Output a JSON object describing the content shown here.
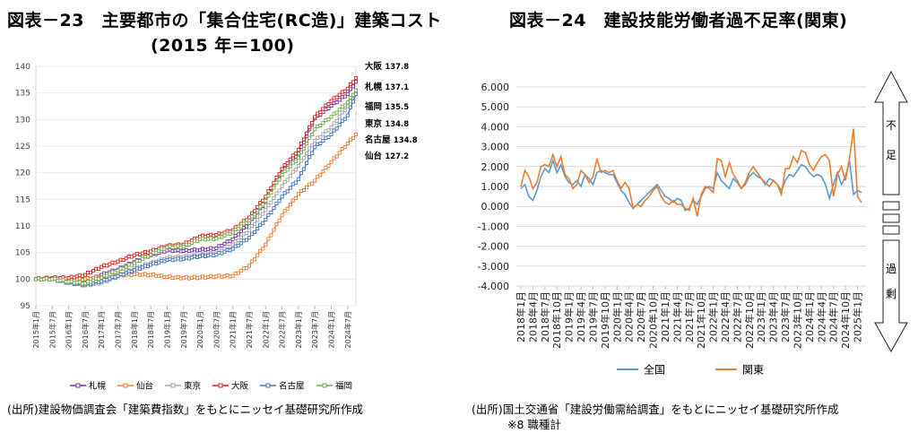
{
  "left": {
    "title_line1": "図表－23　主要都市の「集合住宅(RC造)」建築コスト",
    "title_line2": "(2015 年＝100)",
    "source": "(出所)建設物価調査会「建築費指数」をもとにニッセイ基礎研究所作成"
  },
  "right": {
    "title": "図表－24　建設技能労働者過不足率(関東)",
    "source_line1": "(出所)国土交通省「建設労働需給調査」をもとにニッセイ基礎研究所作成",
    "source_line2": "※8 職種計",
    "arrow_top": [
      "不",
      "足"
    ],
    "arrow_bottom": [
      "過",
      "剰"
    ]
  },
  "chart_data": [
    {
      "type": "line",
      "title": "主要都市の「集合住宅(RC造)」建築コスト",
      "subtitle": "(2015 年＝100)",
      "ylim": [
        95,
        140
      ],
      "yticks": [
        "95",
        "100",
        "105",
        "110",
        "115",
        "120",
        "125",
        "130",
        "135",
        "140"
      ],
      "xticks": [
        "2015年1月",
        "2015年7月",
        "2016年1月",
        "2016年7月",
        "2017年1月",
        "2017年7月",
        "2018年1月",
        "2018年7月",
        "2019年1月",
        "2019年7月",
        "2020年1月",
        "2020年7月",
        "2021年1月",
        "2021年7月",
        "2022年1月",
        "2022年7月",
        "2023年1月",
        "2023年7月",
        "2024年1月",
        "2024年7月"
      ],
      "legend_position": "bottom",
      "series": [
        {
          "name": "札幌",
          "color": "#7030a0",
          "end_label": "札幌 137.1",
          "anchors": [
            [
              0,
              100
            ],
            [
              6,
              100.1
            ],
            [
              12,
              99.6
            ],
            [
              18,
              99.3
            ],
            [
              24,
              100.8
            ],
            [
              30,
              101.8
            ],
            [
              36,
              103.2
            ],
            [
              42,
              104.5
            ],
            [
              48,
              105.4
            ],
            [
              54,
              105.3
            ],
            [
              60,
              105.5
            ],
            [
              66,
              105.8
            ],
            [
              72,
              107.5
            ],
            [
              78,
              110.5
            ],
            [
              84,
              114.5
            ],
            [
              90,
              120.6
            ],
            [
              96,
              123.6
            ],
            [
              102,
              130.2
            ],
            [
              108,
              132.6
            ],
            [
              114,
              134.8
            ],
            [
              117,
              137.1
            ]
          ]
        },
        {
          "name": "仙台",
          "color": "#ed7d31",
          "end_label": "仙台 127.2",
          "anchors": [
            [
              0,
              100
            ],
            [
              6,
              100.1
            ],
            [
              12,
              99.9
            ],
            [
              18,
              100
            ],
            [
              24,
              100.4
            ],
            [
              30,
              100.7
            ],
            [
              36,
              100.9
            ],
            [
              42,
              100.8
            ],
            [
              48,
              100.4
            ],
            [
              54,
              100.2
            ],
            [
              60,
              100.3
            ],
            [
              66,
              100.5
            ],
            [
              72,
              100.6
            ],
            [
              78,
              102.5
            ],
            [
              84,
              106.5
            ],
            [
              90,
              112
            ],
            [
              96,
              116
            ],
            [
              102,
              118.5
            ],
            [
              108,
              122
            ],
            [
              114,
              125.5
            ],
            [
              117,
              127.2
            ]
          ]
        },
        {
          "name": "東京",
          "color": "#a5a5a5",
          "end_label": "東京 134.8",
          "anchors": [
            [
              0,
              100
            ],
            [
              6,
              100
            ],
            [
              12,
              99.3
            ],
            [
              18,
              98.8
            ],
            [
              24,
              99.3
            ],
            [
              30,
              100.5
            ],
            [
              36,
              102
            ],
            [
              42,
              103
            ],
            [
              48,
              104
            ],
            [
              54,
              104.2
            ],
            [
              60,
              104.5
            ],
            [
              66,
              104.9
            ],
            [
              72,
              106.5
            ],
            [
              78,
              109.2
            ],
            [
              84,
              113
            ],
            [
              90,
              117.5
            ],
            [
              96,
              121.3
            ],
            [
              102,
              126
            ],
            [
              108,
              128.5
            ],
            [
              114,
              132.5
            ],
            [
              117,
              134.8
            ]
          ]
        },
        {
          "name": "大阪",
          "color": "#e0201b",
          "end_label": "大阪 137.8",
          "anchors": [
            [
              0,
              100
            ],
            [
              6,
              100.2
            ],
            [
              12,
              100.2
            ],
            [
              18,
              100.8
            ],
            [
              24,
              102.3
            ],
            [
              30,
              103.3
            ],
            [
              36,
              104.5
            ],
            [
              42,
              105.2
            ],
            [
              48,
              106.2
            ],
            [
              54,
              106.5
            ],
            [
              60,
              108
            ],
            [
              66,
              108.3
            ],
            [
              72,
              109.2
            ],
            [
              78,
              111.6
            ],
            [
              84,
              115.5
            ],
            [
              90,
              120.7
            ],
            [
              96,
              124.3
            ],
            [
              102,
              130.5
            ],
            [
              108,
              133.5
            ],
            [
              114,
              135.8
            ],
            [
              117,
              137.8
            ]
          ]
        },
        {
          "name": "名古屋",
          "color": "#4472c4",
          "end_label": "名古屋 134.8",
          "anchors": [
            [
              0,
              100
            ],
            [
              6,
              100
            ],
            [
              12,
              99.3
            ],
            [
              18,
              99
            ],
            [
              24,
              99.6
            ],
            [
              30,
              100.6
            ],
            [
              36,
              101.7
            ],
            [
              42,
              102.7
            ],
            [
              48,
              103.6
            ],
            [
              54,
              103.8
            ],
            [
              60,
              104.3
            ],
            [
              66,
              104.6
            ],
            [
              72,
              105.7
            ],
            [
              78,
              107.8
            ],
            [
              84,
              111.2
            ],
            [
              90,
              115.5
            ],
            [
              96,
              118.8
            ],
            [
              102,
              124.8
            ],
            [
              108,
              127.2
            ],
            [
              114,
              130.8
            ],
            [
              117,
              134.8
            ]
          ]
        },
        {
          "name": "福岡",
          "color": "#70ad47",
          "end_label": "福岡 135.5",
          "anchors": [
            [
              0,
              100
            ],
            [
              6,
              100
            ],
            [
              12,
              99.5
            ],
            [
              18,
              99.2
            ],
            [
              24,
              100.3
            ],
            [
              30,
              101.6
            ],
            [
              36,
              103
            ],
            [
              42,
              104.6
            ],
            [
              48,
              106
            ],
            [
              54,
              106.1
            ],
            [
              60,
              107.5
            ],
            [
              66,
              107.6
            ],
            [
              72,
              108.8
            ],
            [
              78,
              111
            ],
            [
              84,
              114.7
            ],
            [
              90,
              119.6
            ],
            [
              96,
              122.8
            ],
            [
              102,
              128.2
            ],
            [
              108,
              130.5
            ],
            [
              114,
              133.2
            ],
            [
              117,
              135.5
            ]
          ]
        }
      ]
    },
    {
      "type": "line",
      "title": "建設技能労働者過不足率(関東)",
      "ylim": [
        -4,
        6
      ],
      "yticks": [
        "6.000",
        "5.000",
        "4.000",
        "3.000",
        "2.000",
        "1.000",
        "0.000",
        "-1.000",
        "-2.000",
        "-3.000",
        "-4.000"
      ],
      "xticks": [
        "2018年1月",
        "2018年4月",
        "2018年7月",
        "2018年10月",
        "2019年1月",
        "2019年4月",
        "2019年7月",
        "2019年10月",
        "2020年1月",
        "2020年4月",
        "2020年7月",
        "2020年10月",
        "2021年1月",
        "2021年4月",
        "2021年7月",
        "2021年10月",
        "2022年1月",
        "2022年4月",
        "2022年7月",
        "2022年10月",
        "2023年1月",
        "2023年4月",
        "2023年7月",
        "2023年10月",
        "2024年1月",
        "2024年4月",
        "2024年7月",
        "2024年10月",
        "2025年1月"
      ],
      "legend_position": "bottom",
      "series": [
        {
          "name": "全国",
          "color": "#5b9bd5",
          "values": [
            0.9,
            1.1,
            0.5,
            0.3,
            0.8,
            1.5,
            1.9,
            1.7,
            2.3,
            1.7,
            2.1,
            1.5,
            1.2,
            1.1,
            1.3,
            1.0,
            1.6,
            1.4,
            1.1,
            1.7,
            1.8,
            1.7,
            1.6,
            1.6,
            1.2,
            0.8,
            0.6,
            0.2,
            -0.1,
            0.1,
            0.3,
            0.5,
            0.7,
            0.9,
            1.1,
            0.8,
            0.5,
            0.4,
            0.2,
            0.4,
            0.3,
            -0.2,
            -0.1,
            0.3,
            0.1,
            0.5,
            0.9,
            1.0,
            0.9,
            1.7,
            1.3,
            1.1,
            0.9,
            1.4,
            1.2,
            0.9,
            1.1,
            1.5,
            1.7,
            1.5,
            1.4,
            1.1,
            1.4,
            1.3,
            1.1,
            0.8,
            1.3,
            1.6,
            1.5,
            1.8,
            2.1,
            2.0,
            1.7,
            1.5,
            1.6,
            1.5,
            1.1,
            0.4,
            1.1,
            1.7,
            1.1,
            1.5,
            2.3,
            0.6,
            0.8,
            0.7
          ]
        },
        {
          "name": "関東",
          "color": "#ed7d31",
          "values": [
            1.0,
            1.8,
            1.5,
            0.9,
            1.2,
            2.0,
            2.1,
            2.0,
            2.6,
            2.0,
            2.5,
            1.6,
            1.4,
            0.9,
            1.1,
            1.8,
            1.6,
            1.2,
            1.5,
            2.4,
            1.7,
            1.8,
            1.7,
            1.8,
            1.3,
            0.9,
            1.2,
            0.9,
            -0.1,
            0.1,
            0.0,
            0.3,
            0.5,
            0.8,
            1.0,
            0.5,
            0.2,
            0.1,
            0.3,
            0.1,
            0.1,
            -0.1,
            -0.2,
            0.4,
            -0.5,
            0.6,
            1.0,
            0.9,
            0.7,
            2.4,
            2.3,
            1.5,
            2.2,
            1.6,
            1.3,
            0.9,
            1.2,
            1.7,
            2.0,
            1.7,
            1.4,
            1.2,
            1.0,
            1.3,
            1.1,
            0.6,
            1.9,
            1.9,
            2.5,
            2.2,
            2.8,
            2.7,
            2.1,
            1.8,
            2.2,
            2.5,
            2.6,
            2.3,
            0.5,
            1.6,
            2.0,
            1.3,
            2.4,
            3.9,
            0.5,
            0.2
          ]
        }
      ]
    }
  ]
}
